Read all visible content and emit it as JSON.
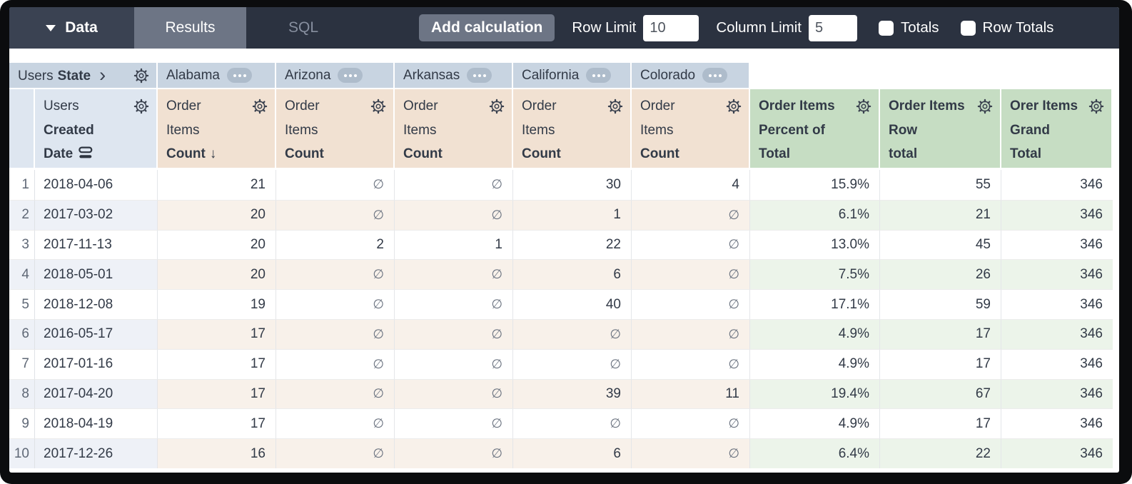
{
  "toolbar": {
    "data_menu_label": "Data",
    "tabs": [
      {
        "label": "Results",
        "active": true
      },
      {
        "label": "SQL",
        "active": false
      }
    ],
    "add_calculation_label": "Add calculation",
    "row_limit": {
      "label": "Row Limit",
      "value": "10"
    },
    "column_limit": {
      "label": "Column Limit",
      "value": "5"
    },
    "totals": {
      "label": "Totals",
      "checked": false
    },
    "row_totals": {
      "label": "Row Totals",
      "checked": false
    }
  },
  "pivot_header": {
    "label_plain": "Users",
    "label_bold": "State",
    "chevron": "›",
    "states": [
      "Alabama",
      "Arizona",
      "Arkansas",
      "California",
      "Colorado"
    ]
  },
  "column_headers": {
    "row_dimension": {
      "line1": "Users",
      "line2": "Created",
      "line3": "Date"
    },
    "measure": {
      "line1": "Order",
      "line2": "Items",
      "line3": "Count",
      "sort_arrow": "↓"
    },
    "calcs": [
      {
        "line1": "Order Items",
        "line2": "Percent of",
        "line3": "Total"
      },
      {
        "line1": "Order Items",
        "line2": "Row",
        "line3": "total"
      },
      {
        "line1": "Orer Items",
        "line2": "Grand",
        "line3": "Total"
      }
    ]
  },
  "table": {
    "null_symbol": "∅",
    "rows": [
      {
        "num": "1",
        "date": "2018-04-06",
        "states": [
          "21",
          null,
          null,
          "30",
          "4"
        ],
        "pct": "15.9%",
        "row_total": "55",
        "grand_total": "346"
      },
      {
        "num": "2",
        "date": "2017-03-02",
        "states": [
          "20",
          null,
          null,
          "1",
          null
        ],
        "pct": "6.1%",
        "row_total": "21",
        "grand_total": "346"
      },
      {
        "num": "3",
        "date": "2017-11-13",
        "states": [
          "20",
          "2",
          "1",
          "22",
          null
        ],
        "pct": "13.0%",
        "row_total": "45",
        "grand_total": "346"
      },
      {
        "num": "4",
        "date": "2018-05-01",
        "states": [
          "20",
          null,
          null,
          "6",
          null
        ],
        "pct": "7.5%",
        "row_total": "26",
        "grand_total": "346"
      },
      {
        "num": "5",
        "date": "2018-12-08",
        "states": [
          "19",
          null,
          null,
          "40",
          null
        ],
        "pct": "17.1%",
        "row_total": "59",
        "grand_total": "346"
      },
      {
        "num": "6",
        "date": "2016-05-17",
        "states": [
          "17",
          null,
          null,
          null,
          null
        ],
        "pct": "4.9%",
        "row_total": "17",
        "grand_total": "346"
      },
      {
        "num": "7",
        "date": "2017-01-16",
        "states": [
          "17",
          null,
          null,
          null,
          null
        ],
        "pct": "4.9%",
        "row_total": "17",
        "grand_total": "346"
      },
      {
        "num": "8",
        "date": "2017-04-20",
        "states": [
          "17",
          null,
          null,
          "39",
          "11"
        ],
        "pct": "19.4%",
        "row_total": "67",
        "grand_total": "346"
      },
      {
        "num": "9",
        "date": "2018-04-19",
        "states": [
          "17",
          null,
          null,
          null,
          null
        ],
        "pct": "4.9%",
        "row_total": "17",
        "grand_total": "346"
      },
      {
        "num": "10",
        "date": "2017-12-26",
        "states": [
          "16",
          null,
          null,
          "6",
          null
        ],
        "pct": "6.4%",
        "row_total": "22",
        "grand_total": "346"
      }
    ]
  },
  "colors": {
    "toolbar_bg": "#2b3240",
    "data_menu_bg": "#3a4252",
    "active_tab_bg": "#6d7585",
    "pivot_header_bg": "#c8d4e1",
    "row_dimension_header_bg": "#dee6f0",
    "measure_header_bg": "#f1e1d2",
    "calc_header_bg": "#c6ddc3",
    "even_row_dim_bg": "#eef1f7",
    "even_row_measure_bg": "#f8f1ea",
    "even_row_calc_bg": "#ecf4ea"
  }
}
